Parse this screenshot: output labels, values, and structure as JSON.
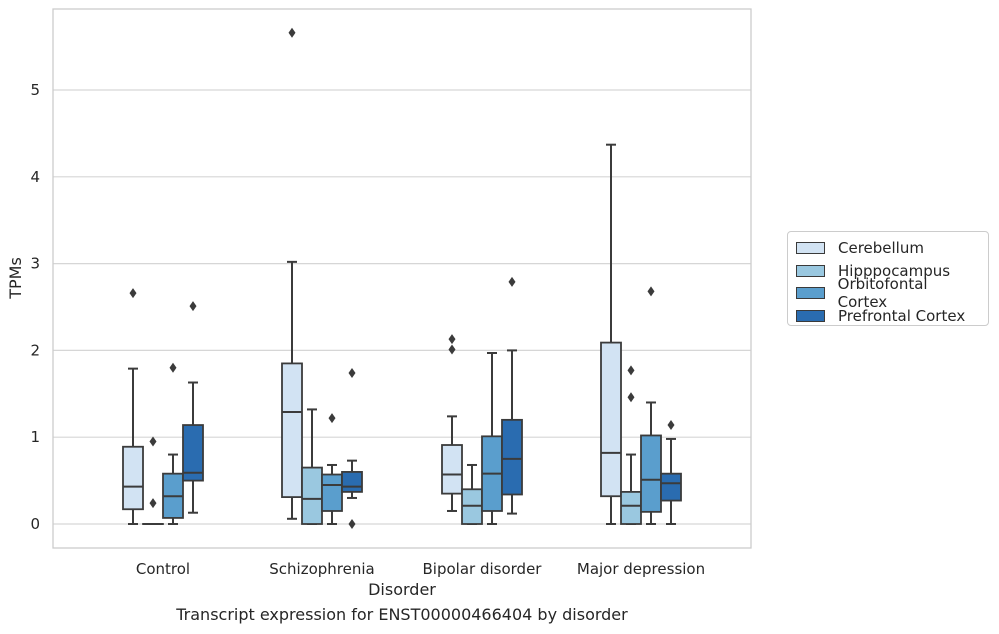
{
  "chart_data": {
    "type": "box",
    "xlabel": "Disorder",
    "ylabel": "TPMs",
    "caption": "Transcript expression for ENST00000466404 by disorder",
    "categories": [
      "Control",
      "Schizophrenia",
      "Bipolar disorder",
      "Major depression"
    ],
    "ylim": [
      -0.27,
      5.95
    ],
    "yticks": [
      0,
      1,
      2,
      3,
      4,
      5
    ],
    "grid": true,
    "legend_position": "right",
    "series": [
      {
        "name": "Cerebellum",
        "color": "#d2e3f3",
        "boxes": [
          {
            "min": 0.0,
            "q1": 0.17,
            "median": 0.43,
            "q3": 0.89,
            "max": 1.79,
            "outliers": [
              2.66
            ]
          },
          {
            "min": 0.06,
            "q1": 0.31,
            "median": 1.29,
            "q3": 1.85,
            "max": 3.02,
            "outliers": [
              5.66
            ]
          },
          {
            "min": 0.15,
            "q1": 0.35,
            "median": 0.57,
            "q3": 0.91,
            "max": 1.24,
            "outliers": [
              2.01,
              2.13
            ]
          },
          {
            "min": 0.0,
            "q1": 0.32,
            "median": 0.82,
            "q3": 2.09,
            "max": 4.37,
            "outliers": []
          }
        ]
      },
      {
        "name": "Hipppocampus",
        "color": "#9ac8e0",
        "boxes": [
          {
            "min": 0.0,
            "q1": 0.0,
            "median": 0.0,
            "q3": 0.0,
            "max": 0.0,
            "outliers": [
              0.24,
              0.95
            ]
          },
          {
            "min": 0.0,
            "q1": 0.0,
            "median": 0.29,
            "q3": 0.65,
            "max": 1.32,
            "outliers": []
          },
          {
            "min": 0.0,
            "q1": 0.0,
            "median": 0.21,
            "q3": 0.4,
            "max": 0.68,
            "outliers": []
          },
          {
            "min": 0.0,
            "q1": 0.0,
            "median": 0.21,
            "q3": 0.37,
            "max": 0.8,
            "outliers": [
              1.46,
              1.77
            ]
          }
        ]
      },
      {
        "name": "Orbitofontal Cortex",
        "color": "#5a9ecd",
        "boxes": [
          {
            "min": 0.0,
            "q1": 0.07,
            "median": 0.32,
            "q3": 0.58,
            "max": 0.8,
            "outliers": [
              1.8
            ]
          },
          {
            "min": 0.0,
            "q1": 0.15,
            "median": 0.45,
            "q3": 0.57,
            "max": 0.68,
            "outliers": [
              1.22
            ]
          },
          {
            "min": 0.0,
            "q1": 0.15,
            "median": 0.58,
            "q3": 1.01,
            "max": 1.97,
            "outliers": []
          },
          {
            "min": 0.0,
            "q1": 0.14,
            "median": 0.51,
            "q3": 1.02,
            "max": 1.4,
            "outliers": [
              2.68
            ]
          }
        ]
      },
      {
        "name": "Prefrontal Cortex",
        "color": "#2a6cb0",
        "boxes": [
          {
            "min": 0.13,
            "q1": 0.5,
            "median": 0.59,
            "q3": 1.14,
            "max": 1.63,
            "outliers": [
              2.51
            ]
          },
          {
            "min": 0.3,
            "q1": 0.37,
            "median": 0.43,
            "q3": 0.6,
            "max": 0.73,
            "outliers": [
              0.0,
              1.74
            ]
          },
          {
            "min": 0.12,
            "q1": 0.34,
            "median": 0.75,
            "q3": 1.2,
            "max": 2.0,
            "outliers": [
              2.79
            ]
          },
          {
            "min": 0.0,
            "q1": 0.27,
            "median": 0.47,
            "q3": 0.58,
            "max": 0.98,
            "outliers": [
              1.14
            ]
          }
        ]
      }
    ]
  }
}
